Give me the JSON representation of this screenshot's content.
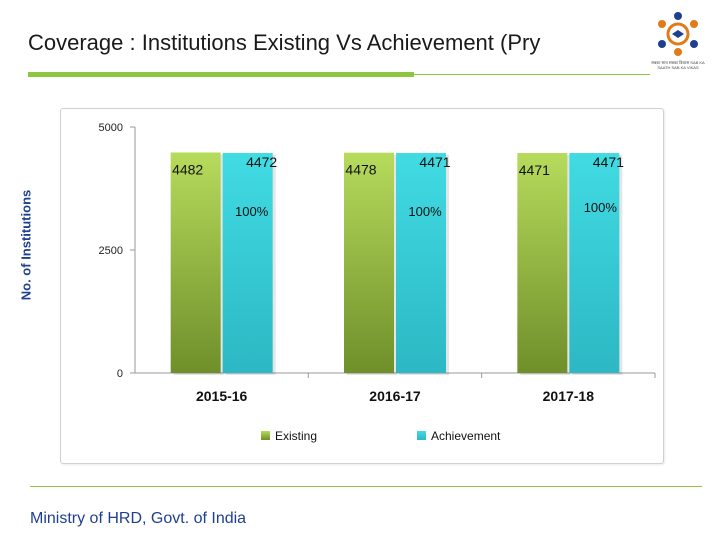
{
  "slide": {
    "title": "Coverage : Institutions Existing Vs Achievement (Pry",
    "footer": "Ministry of HRD, Govt. of India",
    "logo_caption": "सबका साथ सबका विकास SAB KA SAATH SAB KA VIKAS"
  },
  "colors": {
    "accent_green": "#8dc63f",
    "existing_bar": "#8fb83a",
    "achievement_bar": "#37c7d2",
    "axis_label_blue": "#1f3f8f"
  },
  "icons": {
    "logo": "education-logo-icon"
  },
  "chart_data": {
    "type": "bar",
    "title": "",
    "xlabel": "",
    "ylabel": "No. of Institutions",
    "categories": [
      "2015-16",
      "2016-17",
      "2017-18"
    ],
    "series": [
      {
        "name": "Existing",
        "values": [
          4482,
          4478,
          4471
        ],
        "value_labels": [
          "4482",
          "4478",
          "4471"
        ]
      },
      {
        "name": "Achievement",
        "values": [
          4472,
          4471,
          4471
        ],
        "value_labels": [
          "4472",
          "4471",
          "4471"
        ]
      }
    ],
    "percent_labels": [
      "100%",
      "100%",
      "100%"
    ],
    "yticks": [
      0,
      2500,
      5000
    ],
    "ytick_labels": [
      "0",
      "2500",
      "5000"
    ],
    "ylim": [
      0,
      5000
    ],
    "legend_position": "bottom",
    "grid": false
  }
}
